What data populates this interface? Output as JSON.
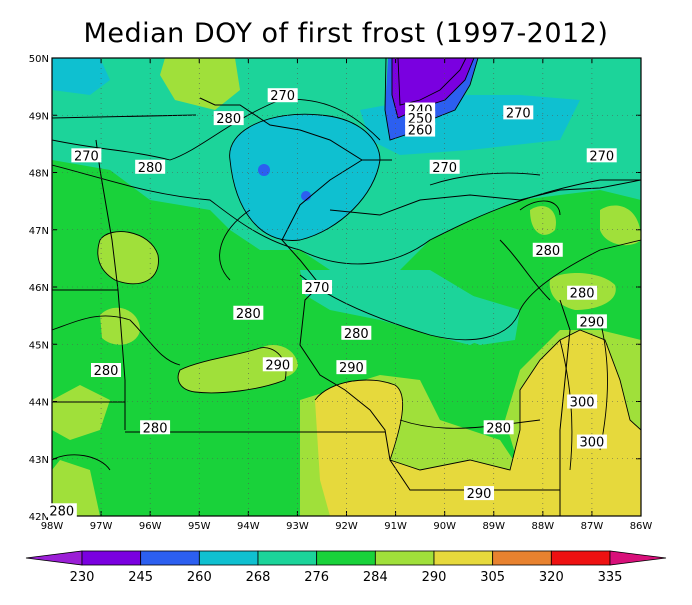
{
  "title": "Median DOY of first frost (1997-2012)",
  "axes": {
    "lon_ticks": [
      "98W",
      "97W",
      "96W",
      "95W",
      "94W",
      "93W",
      "92W",
      "91W",
      "90W",
      "89W",
      "88W",
      "87W",
      "86W"
    ],
    "lat_ticks": [
      "42N",
      "43N",
      "44N",
      "45N",
      "46N",
      "47N",
      "48N",
      "49N",
      "50N"
    ],
    "lon_range": [
      -98,
      -86
    ],
    "lat_range": [
      42,
      50
    ]
  },
  "colorbar": {
    "labels": [
      "230",
      "245",
      "260",
      "268",
      "276",
      "284",
      "290",
      "305",
      "320",
      "335"
    ],
    "colors": [
      "#9b1fd6",
      "#7a00e0",
      "#2c5ff0",
      "#0fc0d0",
      "#1cd49a",
      "#19d23a",
      "#a0e03a",
      "#e6d93c",
      "#e8822f",
      "#ee1111",
      "#d8107a"
    ]
  },
  "contour_labels": [
    {
      "text": "270",
      "lon": -93.3,
      "lat": 49.35
    },
    {
      "text": "280",
      "lon": -94.4,
      "lat": 48.95
    },
    {
      "text": "270",
      "lon": -97.3,
      "lat": 48.3
    },
    {
      "text": "280",
      "lon": -96.0,
      "lat": 48.1
    },
    {
      "text": "240",
      "lon": -90.5,
      "lat": 49.1
    },
    {
      "text": "250",
      "lon": -90.5,
      "lat": 48.95
    },
    {
      "text": "260",
      "lon": -90.5,
      "lat": 48.75
    },
    {
      "text": "270",
      "lon": -88.5,
      "lat": 49.05
    },
    {
      "text": "270",
      "lon": -86.8,
      "lat": 48.3
    },
    {
      "text": "270",
      "lon": -90.0,
      "lat": 48.1
    },
    {
      "text": "280",
      "lon": -87.9,
      "lat": 46.65
    },
    {
      "text": "270",
      "lon": -92.6,
      "lat": 46.0
    },
    {
      "text": "280",
      "lon": -87.2,
      "lat": 45.9
    },
    {
      "text": "280",
      "lon": -94.0,
      "lat": 45.55
    },
    {
      "text": "290",
      "lon": -87.0,
      "lat": 45.4
    },
    {
      "text": "280",
      "lon": -91.8,
      "lat": 45.2
    },
    {
      "text": "290",
      "lon": -93.4,
      "lat": 44.65
    },
    {
      "text": "290",
      "lon": -91.9,
      "lat": 44.6
    },
    {
      "text": "280",
      "lon": -96.9,
      "lat": 44.55
    },
    {
      "text": "300",
      "lon": -87.2,
      "lat": 44.0
    },
    {
      "text": "280",
      "lon": -95.9,
      "lat": 43.55
    },
    {
      "text": "280",
      "lon": -88.9,
      "lat": 43.55
    },
    {
      "text": "300",
      "lon": -87.0,
      "lat": 43.3
    },
    {
      "text": "290",
      "lon": -89.3,
      "lat": 42.4
    },
    {
      "text": "280",
      "lon": -97.8,
      "lat": 42.1
    }
  ]
}
